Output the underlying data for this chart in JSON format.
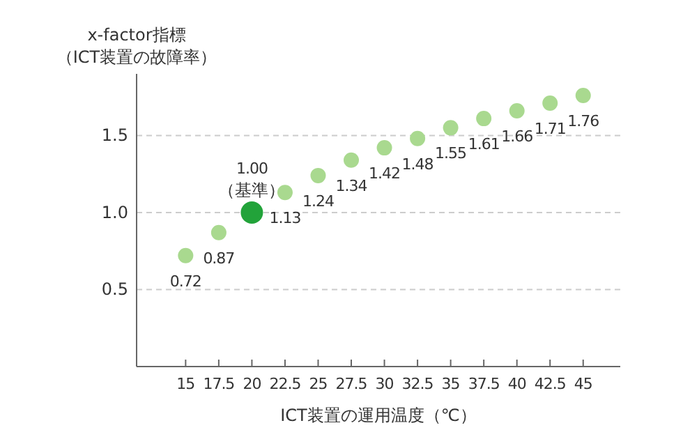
{
  "chart_data": {
    "type": "scatter",
    "ylabel": "x-factor指標（ICT装置の故障率）",
    "xlabel": "ICT装置の運用温度（℃）",
    "xlim": [
      11.3,
      47.8
    ],
    "xticks": [
      15,
      17.5,
      20,
      22.5,
      25,
      27.5,
      30,
      32.5,
      35,
      37.5,
      40,
      42.5,
      45
    ],
    "ylim": [
      0,
      1.9
    ],
    "yticks": [
      {
        "value": 0.5,
        "label": "0.5"
      },
      {
        "value": 1,
        "label": "1.0"
      },
      {
        "value": 1.5,
        "label": "1.5"
      }
    ],
    "grid": "y",
    "marker": "circle",
    "series": [
      {
        "color": "#a9d98f",
        "x": [
          15,
          17.5,
          22.5,
          25,
          27.5,
          30,
          32.5,
          35,
          37.5,
          40,
          42.5,
          45
        ],
        "values": [
          0.72,
          0.87,
          1.13,
          1.24,
          1.34,
          1.42,
          1.48,
          1.55,
          1.61,
          1.66,
          1.71,
          1.76
        ],
        "value_labels": [
          "0.72",
          "0.87",
          "1.13",
          "1.24",
          "1.34",
          "1.42",
          "1.48",
          "1.55",
          "1.61",
          "1.66",
          "1.71",
          "1.76"
        ]
      },
      {
        "color": "#22a33a",
        "x": [
          20
        ],
        "values": [
          1.0
        ],
        "value_labels": [
          "1.00"
        ]
      }
    ],
    "annotations": [
      {
        "text": "（基準）",
        "x": 20,
        "y": 1.0
      }
    ]
  }
}
